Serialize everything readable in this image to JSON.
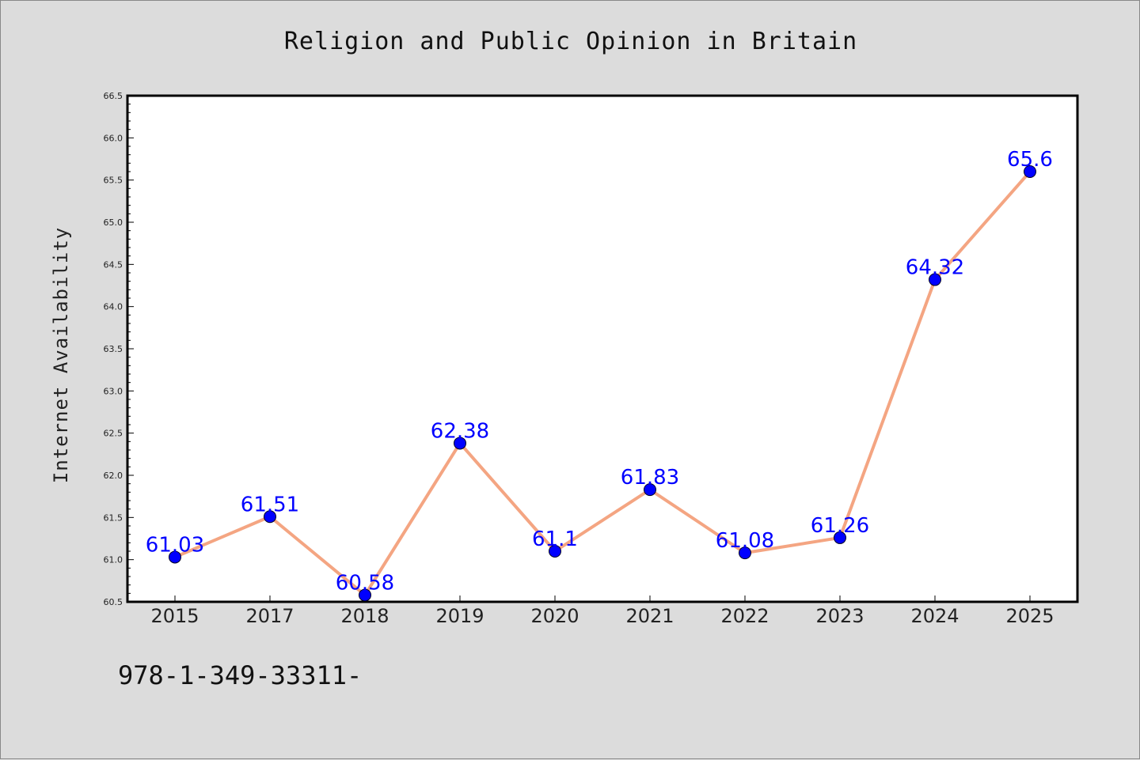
{
  "title": "Religion and Public Opinion in Britain",
  "footer_text": "978-1-349-33311-",
  "colors": {
    "background": "#dcdcdc",
    "plot_background": "#ffffff",
    "line": "#f4a582",
    "marker": "#0000ff",
    "data_label": "#0000ff"
  },
  "chart_data": {
    "type": "line",
    "title": "Religion and Public Opinion in Britain",
    "xlabel": "",
    "ylabel": "Internet Availability",
    "categories": [
      "2015",
      "2017",
      "2018",
      "2019",
      "2020",
      "2021",
      "2022",
      "2023",
      "2024",
      "2025"
    ],
    "series": [
      {
        "values": [
          61.03,
          61.51,
          60.58,
          62.38,
          61.1,
          61.83,
          61.08,
          61.26,
          64.32,
          65.6
        ],
        "labels": [
          "61.03",
          "61.51",
          "60.58",
          "62.38",
          "61.1",
          "61.83",
          "61.08",
          "61.26",
          "64.32",
          "65.6"
        ]
      }
    ],
    "ylim": [
      60.5,
      66.5
    ],
    "yticks": [
      "60.5",
      "61.0",
      "61.5",
      "62.0",
      "62.5",
      "63.0",
      "63.5",
      "64.0",
      "64.5",
      "65.0",
      "65.5",
      "66.0",
      "66.5"
    ],
    "grid": false,
    "legend": "none"
  }
}
